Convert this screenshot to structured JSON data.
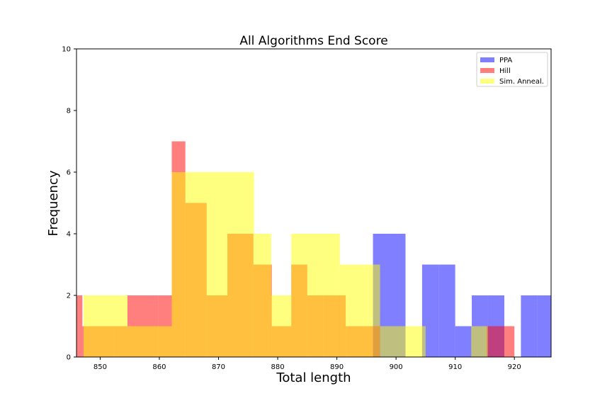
{
  "chart_data": {
    "type": "bar",
    "title": "All Algorithms End Score",
    "xlabel": "Total length",
    "ylabel": "Frequency",
    "xlim": [
      846,
      926.2
    ],
    "ylim": [
      0,
      10
    ],
    "x_ticks": [
      850,
      860,
      870,
      880,
      890,
      900,
      910,
      920
    ],
    "y_ticks": [
      0,
      2,
      4,
      6,
      8,
      10
    ],
    "grid": false,
    "legend_position": "top-right",
    "series": [
      {
        "name": "PPA",
        "color": "#0000ff",
        "opacity": 0.5,
        "bin_edges": [
          846.0,
          848.8,
          851.6,
          854.3,
          857.1,
          859.9,
          862.7,
          865.5,
          868.3,
          871.0,
          873.8,
          876.6,
          879.4,
          882.2,
          884.9,
          887.7,
          890.5,
          893.3,
          896.1,
          898.9,
          901.6,
          904.4,
          907.2,
          910.0,
          912.8,
          915.5,
          918.3,
          921.1,
          923.9,
          926.2
        ],
        "values": [
          0,
          0,
          0,
          0,
          0,
          0,
          0,
          0,
          0,
          0,
          0,
          0,
          0,
          0,
          0,
          0,
          0,
          0,
          4,
          4,
          0,
          3,
          3,
          1,
          2,
          2,
          0,
          2,
          2
        ]
      },
      {
        "name": "Hill",
        "color": "#ff0000",
        "opacity": 0.5,
        "bin_edges": [
          846.0,
          847.0,
          852.3,
          854.6,
          859.8,
          862.1,
          864.4,
          868.0,
          871.5,
          875.9,
          879.0,
          882.3,
          885.0,
          887.7,
          891.5,
          894.9,
          897.3,
          905.0,
          910.0,
          915.3,
          919.8,
          920.0
        ],
        "values": [
          2,
          1,
          1,
          2,
          2,
          7,
          5,
          2,
          4,
          3,
          1,
          3,
          2,
          2,
          1,
          1,
          0,
          0,
          0,
          1,
          1
        ]
      },
      {
        "name": "Sim. Anneal.",
        "color": "#ffff00",
        "opacity": 0.5,
        "bin_edges": [
          847.2,
          854.6,
          862.1,
          864.6,
          876.0,
          878.9,
          882.3,
          890.5,
          894.9,
          897.3,
          905.0,
          912.7,
          915.5
        ],
        "values": [
          2,
          1,
          6,
          6,
          4,
          2,
          4,
          3,
          3,
          1,
          0,
          1
        ]
      }
    ]
  }
}
